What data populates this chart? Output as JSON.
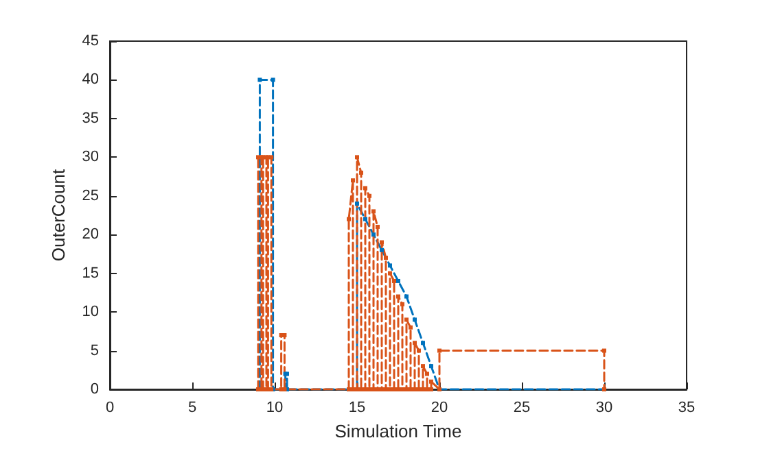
{
  "chart_data": {
    "type": "line",
    "xlabel": "Simulation Time",
    "ylabel": "OuterCount",
    "xlim": [
      0,
      35
    ],
    "xticks": [
      0,
      5,
      10,
      15,
      20,
      25,
      30,
      35
    ],
    "ylim": [
      0,
      45
    ],
    "yticks": [
      0,
      5,
      10,
      15,
      20,
      25,
      30,
      35,
      40,
      45
    ],
    "grid": false,
    "marker": "square",
    "line_style": "dashed",
    "series": [
      {
        "color": "#0072bd",
        "x": [
          9.1,
          9.1,
          9.9,
          9.9,
          10.65,
          10.65,
          10.75,
          10.75,
          15,
          15,
          15.5,
          16,
          16.5,
          17,
          17.5,
          18,
          18.5,
          19,
          19.5,
          20,
          30
        ],
        "values": [
          0,
          40,
          40,
          0,
          0,
          2,
          2,
          0,
          0,
          24,
          22,
          20,
          18,
          16,
          14,
          12,
          9,
          6,
          3,
          0,
          0
        ]
      },
      {
        "color": "#d95319",
        "x": [
          9,
          9,
          9.2,
          9.2,
          9.3,
          9.3,
          9.5,
          9.5,
          9.6,
          9.6,
          9.8,
          9.8,
          10.4,
          10.4,
          10.6,
          10.6,
          14.5,
          14.5,
          14.75,
          14.75,
          15,
          15,
          15.25,
          15.25,
          15.5,
          15.5,
          15.75,
          15.75,
          16,
          16,
          16.25,
          16.25,
          16.5,
          16.5,
          16.75,
          16.75,
          17,
          17,
          17.25,
          17.25,
          17.5,
          17.5,
          17.75,
          17.75,
          18,
          18,
          18.25,
          18.25,
          18.5,
          18.5,
          18.75,
          18.75,
          19,
          19,
          19.25,
          19.25,
          19.5,
          19.5,
          20,
          20,
          30,
          30
        ],
        "values": [
          0,
          30,
          30,
          0,
          0,
          30,
          30,
          0,
          0,
          30,
          30,
          0,
          0,
          7,
          7,
          0,
          0,
          22,
          27,
          0,
          0,
          30,
          28,
          0,
          0,
          26,
          25,
          0,
          0,
          23,
          21,
          0,
          0,
          19,
          17,
          0,
          0,
          15,
          14,
          0,
          0,
          12,
          11,
          0,
          0,
          9,
          8,
          0,
          0,
          6,
          5,
          0,
          0,
          3,
          2,
          0,
          0,
          1,
          0,
          5,
          5,
          0
        ]
      }
    ]
  }
}
